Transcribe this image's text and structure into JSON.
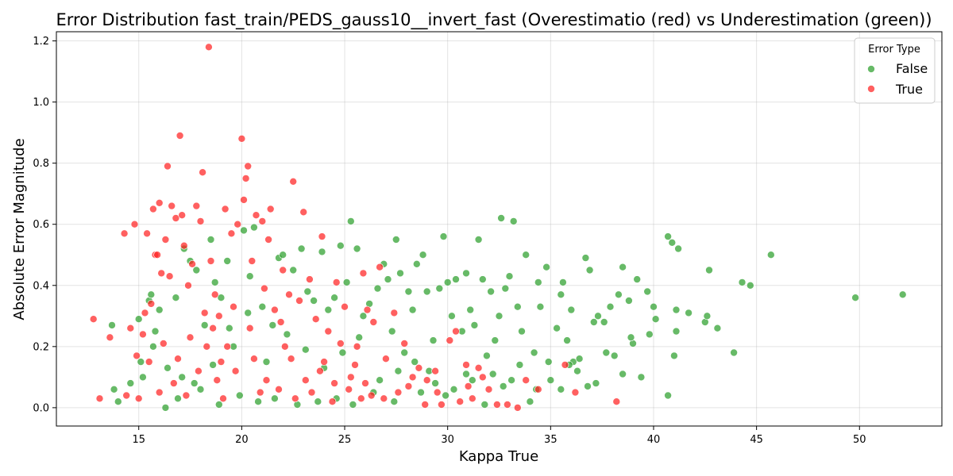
{
  "chart_data": {
    "type": "scatter",
    "title": "Error Distribution fast_train/PEDS_gauss10__invert_fast (Overestimatio (red) vs Underestimation (green))",
    "xlabel": "Kappa True",
    "ylabel": "Absolute Error Magnitude",
    "xlim": [
      11,
      54
    ],
    "ylim": [
      -0.06,
      1.23
    ],
    "xticks": [
      15,
      20,
      25,
      30,
      35,
      40,
      45,
      50
    ],
    "yticks": [
      0.0,
      0.2,
      0.4,
      0.6,
      0.8,
      1.0,
      1.2
    ],
    "grid": true,
    "legend": {
      "title": "Error Type",
      "placement": "top-right"
    },
    "series": [
      {
        "name": "False",
        "color": "#2ca02c",
        "points": [
          [
            13.7,
            0.27
          ],
          [
            13.8,
            0.06
          ],
          [
            14.0,
            0.02
          ],
          [
            14.6,
            0.08
          ],
          [
            15.0,
            0.29
          ],
          [
            15.1,
            0.15
          ],
          [
            15.5,
            0.35
          ],
          [
            15.6,
            0.37
          ],
          [
            15.8,
            0.25
          ],
          [
            16.0,
            0.32
          ],
          [
            16.3,
            0.0
          ],
          [
            16.8,
            0.36
          ],
          [
            17.2,
            0.52
          ],
          [
            17.5,
            0.48
          ],
          [
            17.8,
            0.45
          ],
          [
            18.2,
            0.27
          ],
          [
            18.5,
            0.55
          ],
          [
            18.7,
            0.41
          ],
          [
            19.0,
            0.36
          ],
          [
            19.3,
            0.48
          ],
          [
            19.6,
            0.2
          ],
          [
            20.1,
            0.58
          ],
          [
            20.4,
            0.43
          ],
          [
            20.6,
            0.59
          ],
          [
            21.0,
            0.33
          ],
          [
            21.5,
            0.27
          ],
          [
            21.8,
            0.49
          ],
          [
            22.0,
            0.5
          ],
          [
            22.5,
            0.45
          ],
          [
            22.9,
            0.52
          ],
          [
            23.2,
            0.38
          ],
          [
            23.5,
            0.35
          ],
          [
            23.9,
            0.51
          ],
          [
            24.2,
            0.32
          ],
          [
            24.5,
            0.36
          ],
          [
            24.8,
            0.53
          ],
          [
            25.1,
            0.41
          ],
          [
            25.3,
            0.61
          ],
          [
            25.6,
            0.52
          ],
          [
            25.9,
            0.3
          ],
          [
            26.2,
            0.34
          ],
          [
            26.6,
            0.39
          ],
          [
            26.9,
            0.47
          ],
          [
            27.1,
            0.42
          ],
          [
            27.3,
            0.25
          ],
          [
            27.5,
            0.55
          ],
          [
            27.7,
            0.44
          ],
          [
            27.9,
            0.18
          ],
          [
            28.1,
            0.38
          ],
          [
            28.3,
            0.32
          ],
          [
            28.5,
            0.47
          ],
          [
            28.8,
            0.5
          ],
          [
            29.0,
            0.38
          ],
          [
            29.1,
            0.12
          ],
          [
            29.3,
            0.22
          ],
          [
            29.6,
            0.39
          ],
          [
            29.8,
            0.56
          ],
          [
            30.0,
            0.41
          ],
          [
            30.2,
            0.3
          ],
          [
            30.4,
            0.42
          ],
          [
            30.7,
            0.25
          ],
          [
            30.9,
            0.44
          ],
          [
            31.1,
            0.32
          ],
          [
            31.3,
            0.27
          ],
          [
            31.5,
            0.55
          ],
          [
            31.7,
            0.42
          ],
          [
            31.9,
            0.17
          ],
          [
            32.1,
            0.38
          ],
          [
            32.3,
            0.22
          ],
          [
            32.5,
            0.3
          ],
          [
            32.6,
            0.62
          ],
          [
            32.8,
            0.39
          ],
          [
            33.0,
            0.43
          ],
          [
            33.2,
            0.61
          ],
          [
            33.4,
            0.33
          ],
          [
            33.6,
            0.25
          ],
          [
            33.8,
            0.5
          ],
          [
            34.0,
            0.02
          ],
          [
            34.2,
            0.18
          ],
          [
            34.4,
            0.41
          ],
          [
            34.5,
            0.33
          ],
          [
            34.8,
            0.46
          ],
          [
            35.0,
            0.09
          ],
          [
            35.3,
            0.26
          ],
          [
            35.5,
            0.37
          ],
          [
            35.6,
            0.41
          ],
          [
            35.8,
            0.22
          ],
          [
            36.0,
            0.32
          ],
          [
            36.1,
            0.15
          ],
          [
            36.3,
            0.12
          ],
          [
            36.7,
            0.49
          ],
          [
            36.9,
            0.45
          ],
          [
            37.1,
            0.28
          ],
          [
            37.3,
            0.3
          ],
          [
            37.7,
            0.18
          ],
          [
            37.9,
            0.33
          ],
          [
            38.3,
            0.37
          ],
          [
            38.5,
            0.46
          ],
          [
            38.8,
            0.35
          ],
          [
            39.0,
            0.21
          ],
          [
            39.2,
            0.42
          ],
          [
            39.4,
            0.1
          ],
          [
            39.7,
            0.38
          ],
          [
            40.0,
            0.33
          ],
          [
            40.7,
            0.56
          ],
          [
            40.9,
            0.54
          ],
          [
            41.1,
            0.32
          ],
          [
            41.2,
            0.52
          ],
          [
            41.7,
            0.31
          ],
          [
            42.5,
            0.28
          ],
          [
            42.6,
            0.3
          ],
          [
            42.7,
            0.45
          ],
          [
            43.1,
            0.26
          ],
          [
            43.9,
            0.18
          ],
          [
            44.3,
            0.41
          ],
          [
            44.7,
            0.4
          ],
          [
            45.7,
            0.5
          ],
          [
            49.8,
            0.36
          ],
          [
            52.1,
            0.37
          ],
          [
            40.7,
            0.04
          ],
          [
            41.0,
            0.17
          ],
          [
            41.1,
            0.25
          ],
          [
            38.5,
            0.11
          ],
          [
            37.2,
            0.08
          ],
          [
            36.8,
            0.07
          ],
          [
            35.5,
            0.06
          ],
          [
            34.9,
            0.15
          ],
          [
            33.5,
            0.14
          ],
          [
            32.7,
            0.07
          ],
          [
            31.8,
            0.01
          ],
          [
            30.9,
            0.11
          ],
          [
            29.9,
            0.04
          ],
          [
            28.7,
            0.05
          ],
          [
            27.4,
            0.02
          ],
          [
            26.4,
            0.05
          ],
          [
            25.4,
            0.01
          ],
          [
            24.6,
            0.03
          ],
          [
            23.7,
            0.02
          ],
          [
            22.7,
            0.01
          ],
          [
            21.6,
            0.03
          ],
          [
            20.8,
            0.02
          ],
          [
            19.9,
            0.04
          ],
          [
            18.9,
            0.01
          ],
          [
            18.0,
            0.06
          ],
          [
            17.1,
            0.1
          ],
          [
            16.4,
            0.13
          ],
          [
            15.7,
            0.2
          ],
          [
            15.2,
            0.1
          ],
          [
            16.9,
            0.03
          ],
          [
            17.7,
            0.08
          ],
          [
            18.6,
            0.14
          ],
          [
            19.4,
            0.26
          ],
          [
            20.3,
            0.31
          ],
          [
            21.2,
            0.15
          ],
          [
            22.2,
            0.24
          ],
          [
            23.1,
            0.19
          ],
          [
            24.0,
            0.13
          ],
          [
            24.9,
            0.18
          ],
          [
            25.7,
            0.23
          ],
          [
            26.7,
            0.09
          ],
          [
            27.6,
            0.12
          ],
          [
            28.4,
            0.15
          ],
          [
            29.4,
            0.08
          ],
          [
            30.3,
            0.06
          ],
          [
            31.2,
            0.09
          ],
          [
            32.2,
            0.11
          ],
          [
            33.1,
            0.09
          ],
          [
            34.3,
            0.06
          ],
          [
            35.9,
            0.14
          ],
          [
            36.4,
            0.16
          ],
          [
            37.6,
            0.28
          ],
          [
            38.1,
            0.17
          ],
          [
            38.9,
            0.23
          ],
          [
            39.8,
            0.24
          ],
          [
            40.1,
            0.29
          ]
        ]
      },
      {
        "name": "True",
        "color": "#ff2222",
        "points": [
          [
            12.8,
            0.29
          ],
          [
            13.1,
            0.03
          ],
          [
            13.6,
            0.23
          ],
          [
            14.3,
            0.57
          ],
          [
            14.4,
            0.04
          ],
          [
            14.6,
            0.26
          ],
          [
            14.8,
            0.6
          ],
          [
            14.9,
            0.17
          ],
          [
            15.2,
            0.24
          ],
          [
            15.4,
            0.57
          ],
          [
            15.6,
            0.34
          ],
          [
            15.7,
            0.65
          ],
          [
            15.8,
            0.5
          ],
          [
            15.9,
            0.5
          ],
          [
            16.0,
            0.67
          ],
          [
            16.1,
            0.44
          ],
          [
            16.2,
            0.21
          ],
          [
            16.3,
            0.55
          ],
          [
            16.4,
            0.79
          ],
          [
            16.5,
            0.43
          ],
          [
            16.6,
            0.66
          ],
          [
            16.8,
            0.62
          ],
          [
            17.0,
            0.89
          ],
          [
            17.1,
            0.63
          ],
          [
            17.2,
            0.53
          ],
          [
            17.4,
            0.4
          ],
          [
            17.6,
            0.47
          ],
          [
            17.8,
            0.66
          ],
          [
            18.0,
            0.61
          ],
          [
            18.1,
            0.77
          ],
          [
            18.3,
            0.2
          ],
          [
            18.4,
            1.18
          ],
          [
            18.5,
            0.48
          ],
          [
            18.7,
            0.37
          ],
          [
            18.9,
            0.3
          ],
          [
            19.0,
            0.15
          ],
          [
            19.2,
            0.65
          ],
          [
            19.5,
            0.57
          ],
          [
            19.8,
            0.6
          ],
          [
            20.0,
            0.88
          ],
          [
            20.1,
            0.68
          ],
          [
            20.2,
            0.75
          ],
          [
            20.3,
            0.79
          ],
          [
            20.5,
            0.48
          ],
          [
            20.7,
            0.63
          ],
          [
            21.0,
            0.61
          ],
          [
            21.3,
            0.55
          ],
          [
            21.4,
            0.65
          ],
          [
            21.6,
            0.32
          ],
          [
            22.0,
            0.45
          ],
          [
            22.3,
            0.37
          ],
          [
            22.5,
            0.74
          ],
          [
            22.8,
            0.35
          ],
          [
            23.0,
            0.64
          ],
          [
            23.3,
            0.42
          ],
          [
            23.6,
            0.29
          ],
          [
            23.9,
            0.56
          ],
          [
            24.2,
            0.25
          ],
          [
            24.6,
            0.41
          ],
          [
            25.0,
            0.33
          ],
          [
            25.3,
            0.1
          ],
          [
            25.6,
            0.2
          ],
          [
            25.9,
            0.44
          ],
          [
            26.1,
            0.32
          ],
          [
            26.4,
            0.28
          ],
          [
            26.7,
            0.46
          ],
          [
            27.0,
            0.16
          ],
          [
            27.4,
            0.31
          ],
          [
            27.9,
            0.21
          ],
          [
            28.3,
            0.1
          ],
          [
            28.6,
            0.13
          ],
          [
            29.0,
            0.09
          ],
          [
            29.4,
            0.12
          ],
          [
            29.7,
            0.01
          ],
          [
            30.1,
            0.22
          ],
          [
            30.4,
            0.25
          ],
          [
            30.9,
            0.14
          ],
          [
            31.2,
            0.03
          ],
          [
            31.5,
            0.13
          ],
          [
            31.7,
            0.1
          ],
          [
            32.0,
            0.06
          ],
          [
            32.4,
            0.01
          ],
          [
            32.9,
            0.01
          ],
          [
            33.4,
            0.0
          ],
          [
            33.8,
            0.09
          ],
          [
            34.4,
            0.06
          ],
          [
            35.7,
            0.14
          ],
          [
            36.2,
            0.05
          ],
          [
            38.2,
            0.02
          ],
          [
            15.3,
            0.31
          ],
          [
            16.7,
            0.08
          ],
          [
            17.5,
            0.23
          ],
          [
            18.2,
            0.31
          ],
          [
            18.8,
            0.09
          ],
          [
            19.3,
            0.2
          ],
          [
            19.7,
            0.12
          ],
          [
            20.4,
            0.26
          ],
          [
            20.9,
            0.05
          ],
          [
            21.1,
            0.39
          ],
          [
            21.8,
            0.06
          ],
          [
            22.1,
            0.2
          ],
          [
            22.6,
            0.03
          ],
          [
            23.1,
            0.09
          ],
          [
            23.8,
            0.12
          ],
          [
            24.4,
            0.02
          ],
          [
            24.8,
            0.21
          ],
          [
            25.2,
            0.06
          ],
          [
            25.8,
            0.03
          ],
          [
            26.3,
            0.04
          ],
          [
            26.9,
            0.03
          ],
          [
            27.6,
            0.05
          ],
          [
            28.1,
            0.07
          ],
          [
            28.9,
            0.01
          ],
          [
            29.5,
            0.05
          ],
          [
            30.6,
            0.02
          ],
          [
            31.0,
            0.07
          ],
          [
            15.0,
            0.03
          ],
          [
            15.5,
            0.15
          ],
          [
            16.0,
            0.05
          ],
          [
            16.9,
            0.16
          ],
          [
            17.3,
            0.04
          ],
          [
            17.9,
            0.12
          ],
          [
            18.6,
            0.26
          ],
          [
            19.1,
            0.03
          ],
          [
            19.6,
            0.33
          ],
          [
            20.6,
            0.16
          ],
          [
            21.2,
            0.09
          ],
          [
            21.9,
            0.28
          ],
          [
            22.4,
            0.16
          ],
          [
            23.4,
            0.05
          ],
          [
            24.0,
            0.15
          ],
          [
            24.5,
            0.08
          ],
          [
            25.5,
            0.14
          ],
          [
            26.0,
            0.08
          ]
        ]
      }
    ]
  }
}
